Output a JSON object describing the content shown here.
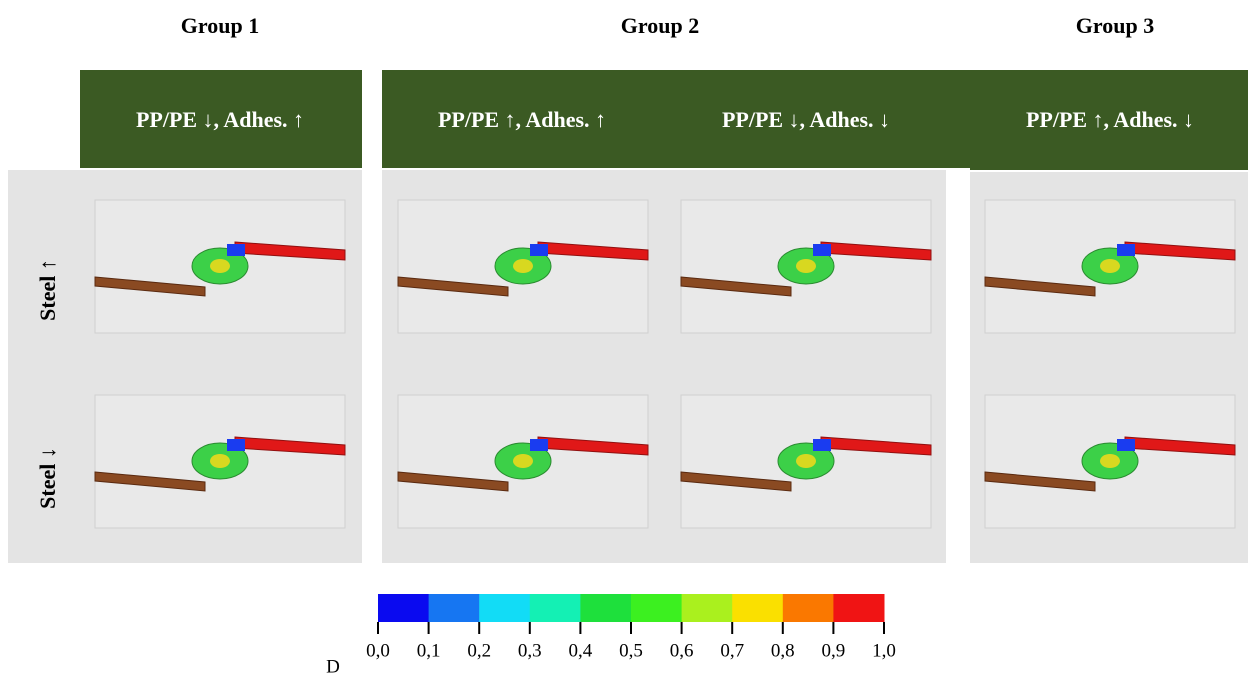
{
  "groups": [
    "Group 1",
    "Group 2",
    "Group 3"
  ],
  "columns": [
    "PP/PE ↓, Adhes. ↑",
    "PP/PE ↑, Adhes. ↑",
    "PP/PE ↓, Adhes. ↓",
    "PP/PE ↑, Adhes. ↓"
  ],
  "rows": [
    "Steel ↑",
    "Steel ↓"
  ],
  "colorbar": {
    "label": "D",
    "ticks": [
      "0,0",
      "0,1",
      "0,2",
      "0,3",
      "0,4",
      "0,5",
      "0,6",
      "0,7",
      "0,8",
      "0,9",
      "1,0"
    ],
    "colors": [
      "#0a0af0",
      "#1676f2",
      "#12dcf6",
      "#14f0b4",
      "#1ee03c",
      "#3cf020",
      "#aaf01e",
      "#fae000",
      "#fa7800",
      "#f01414"
    ]
  }
}
